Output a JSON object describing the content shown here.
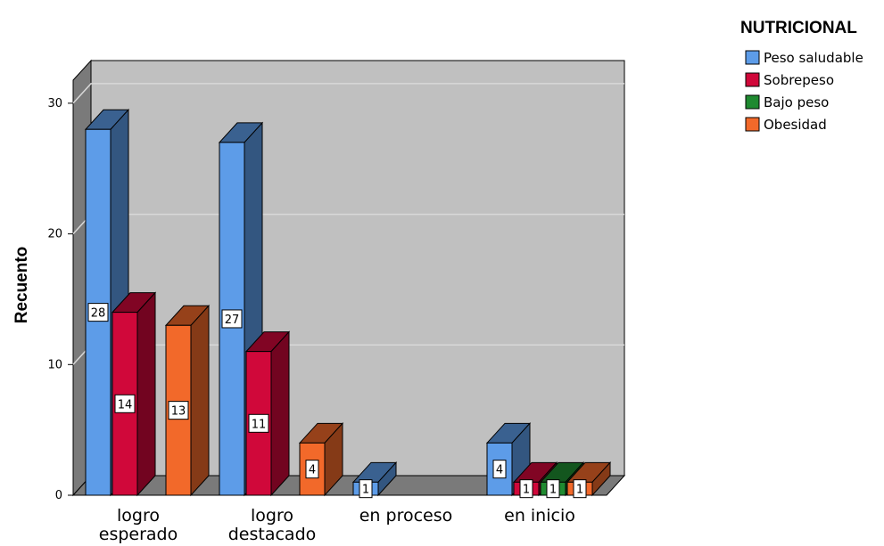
{
  "chart_data": {
    "type": "bar",
    "ylabel": "Recuento",
    "legend_title": "NUTRICIONAL",
    "legend_position": "top-right",
    "categories": [
      [
        "logro",
        "esperado"
      ],
      [
        "logro",
        "destacado"
      ],
      [
        "en proceso"
      ],
      [
        "en inicio"
      ]
    ],
    "ylim": [
      0,
      30
    ],
    "yticks": [
      "0",
      "10",
      "20",
      "30"
    ],
    "grid": true,
    "series": [
      {
        "name": "Peso saludable",
        "color": "#5d9ce8",
        "values": [
          28,
          27,
          1,
          4
        ]
      },
      {
        "name": "Sobrepeso",
        "color": "#d0083a",
        "values": [
          14,
          11,
          0,
          1
        ]
      },
      {
        "name": "Bajo peso",
        "color": "#1f8a30",
        "values": [
          0,
          0,
          0,
          1
        ]
      },
      {
        "name": "Obesidad",
        "color": "#f2692a",
        "values": [
          13,
          4,
          0,
          1
        ]
      }
    ],
    "data_labels": [
      [
        "28",
        "14",
        "",
        "13"
      ],
      [
        "27",
        "11",
        "",
        "4"
      ],
      [
        "1",
        "",
        "",
        ""
      ],
      [
        "4",
        "1",
        "1",
        "1"
      ]
    ]
  }
}
